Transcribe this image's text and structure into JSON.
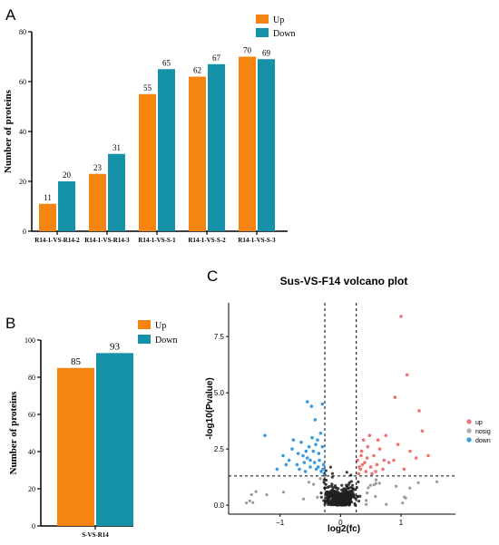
{
  "panels": {
    "A": {
      "letter": "A"
    },
    "B": {
      "letter": "B"
    },
    "C": {
      "letter": "C"
    }
  },
  "colors": {
    "up": "#f58410",
    "down": "#1592a8",
    "volcano_up": "#f07272",
    "volcano_nosig": "#1f1f1f",
    "volcano_down": "#3a9be0"
  },
  "chart_data": [
    {
      "panel": "A",
      "type": "bar",
      "categories": [
        "R14-1-VS-R14-2",
        "R14-1-VS-R14-3",
        "R14-1-VS-S-1",
        "R14-1-VS-S-2",
        "R14-1-VS-S-3"
      ],
      "series": [
        {
          "name": "Up",
          "values": [
            11,
            23,
            55,
            62,
            70
          ]
        },
        {
          "name": "Down",
          "values": [
            20,
            31,
            65,
            67,
            69
          ]
        }
      ],
      "ylabel": "Number of proteins",
      "ylim": [
        0,
        80
      ],
      "yticks": [
        0,
        20,
        40,
        60,
        80
      ],
      "legend": "top-right",
      "data_labels": true
    },
    {
      "panel": "B",
      "type": "bar",
      "categories": [
        "S-VS-R14"
      ],
      "series": [
        {
          "name": "Up",
          "values": [
            85
          ]
        },
        {
          "name": "Down",
          "values": [
            93
          ]
        }
      ],
      "ylabel": "Number of proteins",
      "ylim": [
        0,
        100
      ],
      "yticks": [
        0,
        20,
        40,
        60,
        80,
        100
      ],
      "legend": "top-right",
      "data_labels": true
    },
    {
      "panel": "C",
      "type": "scatter",
      "title": "Sus-VS-F14 volcano plot",
      "xlabel": "log2(fc)",
      "ylabel": "-log10(Pvalue)",
      "xlim": [
        -1.85,
        1.9
      ],
      "ylim": [
        -0.4,
        9.0
      ],
      "xticks": [
        -1,
        0,
        1
      ],
      "xtick_labels": [
        "−1",
        "0",
        "1"
      ],
      "yticks": [
        0.0,
        2.5,
        5.0,
        7.5
      ],
      "ytick_labels": [
        "0.0",
        "2.5",
        "5.0",
        "7.5"
      ],
      "thresholds": {
        "x": [
          -0.26,
          0.26
        ],
        "y": 1.3
      },
      "legend": "right",
      "series": [
        {
          "name": "up",
          "points": [
            [
              1.0,
              8.4
            ],
            [
              1.1,
              5.8
            ],
            [
              0.9,
              4.8
            ],
            [
              1.35,
              3.3
            ],
            [
              1.3,
              4.2
            ],
            [
              0.75,
              3.1
            ],
            [
              0.95,
              2.7
            ],
            [
              1.25,
              2.1
            ],
            [
              0.55,
              2.2
            ],
            [
              0.45,
              2.6
            ],
            [
              0.35,
              2.4
            ],
            [
              0.4,
              1.9
            ],
            [
              0.33,
              1.6
            ],
            [
              0.42,
              1.5
            ],
            [
              0.5,
              1.7
            ],
            [
              0.6,
              1.8
            ],
            [
              0.7,
              1.6
            ],
            [
              0.8,
              1.9
            ],
            [
              0.3,
              1.4
            ],
            [
              0.38,
              2.9
            ],
            [
              0.28,
              2.0
            ],
            [
              0.52,
              1.4
            ],
            [
              0.65,
              2.5
            ],
            [
              0.88,
              2.0
            ],
            [
              1.05,
              1.6
            ],
            [
              1.15,
              2.4
            ],
            [
              0.48,
              3.1
            ],
            [
              0.58,
              1.5
            ],
            [
              0.36,
              1.8
            ],
            [
              0.31,
              1.7
            ],
            [
              0.44,
              2.1
            ],
            [
              1.45,
              2.2
            ],
            [
              0.72,
              2.0
            ],
            [
              0.62,
              2.9
            ],
            [
              0.34,
              2.2
            ]
          ]
        },
        {
          "name": "nosig"
        },
        {
          "name": "down",
          "points": [
            [
              -0.55,
              4.6
            ],
            [
              -0.48,
              4.4
            ],
            [
              -0.3,
              4.5
            ],
            [
              -0.42,
              3.8
            ],
            [
              -1.25,
              3.1
            ],
            [
              -0.95,
              2.2
            ],
            [
              -0.8,
              2.5
            ],
            [
              -0.7,
              2.3
            ],
            [
              -0.65,
              2.8
            ],
            [
              -0.6,
              1.9
            ],
            [
              -0.55,
              2.1
            ],
            [
              -0.5,
              1.7
            ],
            [
              -0.45,
              2.4
            ],
            [
              -0.4,
              1.6
            ],
            [
              -0.35,
              2.0
            ],
            [
              -0.32,
              1.5
            ],
            [
              -0.3,
              2.6
            ],
            [
              -0.28,
              1.8
            ],
            [
              -0.38,
              2.9
            ],
            [
              -0.58,
              1.5
            ],
            [
              -0.72,
              1.8
            ],
            [
              -0.85,
              2.0
            ],
            [
              -1.05,
              1.6
            ],
            [
              -0.47,
              3.0
            ],
            [
              -0.52,
              2.6
            ],
            [
              -0.62,
              2.2
            ],
            [
              -0.36,
              2.3
            ],
            [
              -0.43,
              1.9
            ],
            [
              -0.27,
              1.4
            ],
            [
              -0.33,
              3.2
            ],
            [
              -0.68,
              1.6
            ],
            [
              -0.78,
              2.9
            ],
            [
              -0.9,
              1.8
            ],
            [
              -0.41,
              2.7
            ],
            [
              -0.5,
              2.0
            ],
            [
              -0.29,
              1.6
            ],
            [
              -0.57,
              2.4
            ],
            [
              -0.37,
              1.7
            ]
          ]
        }
      ]
    }
  ]
}
